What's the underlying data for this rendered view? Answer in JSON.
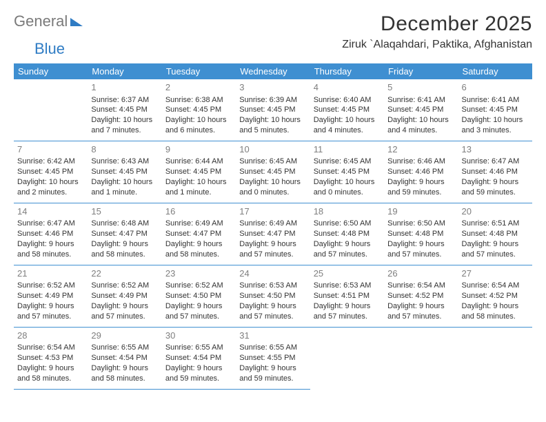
{
  "brand": {
    "part1": "General",
    "part2": "Blue"
  },
  "title": "December 2025",
  "location": "Ziruk `Alaqahdari, Paktika, Afghanistan",
  "colors": {
    "header_bg": "#3f8fd1",
    "header_text": "#ffffff",
    "rule": "#3f8fd1",
    "daynum": "#7e7e7e",
    "body_text": "#333333",
    "brand_gray": "#7a7a7a",
    "brand_blue": "#2f7cc4",
    "page_bg": "#ffffff"
  },
  "typography": {
    "title_fontsize": 30,
    "location_fontsize": 16,
    "dayheader_fontsize": 13,
    "cell_fontsize": 11,
    "daynum_fontsize": 13
  },
  "day_headers": [
    "Sunday",
    "Monday",
    "Tuesday",
    "Wednesday",
    "Thursday",
    "Friday",
    "Saturday"
  ],
  "weeks": [
    [
      {
        "n": "",
        "sr": "",
        "ss": "",
        "dl": ""
      },
      {
        "n": "1",
        "sr": "Sunrise: 6:37 AM",
        "ss": "Sunset: 4:45 PM",
        "dl": "Daylight: 10 hours and 7 minutes."
      },
      {
        "n": "2",
        "sr": "Sunrise: 6:38 AM",
        "ss": "Sunset: 4:45 PM",
        "dl": "Daylight: 10 hours and 6 minutes."
      },
      {
        "n": "3",
        "sr": "Sunrise: 6:39 AM",
        "ss": "Sunset: 4:45 PM",
        "dl": "Daylight: 10 hours and 5 minutes."
      },
      {
        "n": "4",
        "sr": "Sunrise: 6:40 AM",
        "ss": "Sunset: 4:45 PM",
        "dl": "Daylight: 10 hours and 4 minutes."
      },
      {
        "n": "5",
        "sr": "Sunrise: 6:41 AM",
        "ss": "Sunset: 4:45 PM",
        "dl": "Daylight: 10 hours and 4 minutes."
      },
      {
        "n": "6",
        "sr": "Sunrise: 6:41 AM",
        "ss": "Sunset: 4:45 PM",
        "dl": "Daylight: 10 hours and 3 minutes."
      }
    ],
    [
      {
        "n": "7",
        "sr": "Sunrise: 6:42 AM",
        "ss": "Sunset: 4:45 PM",
        "dl": "Daylight: 10 hours and 2 minutes."
      },
      {
        "n": "8",
        "sr": "Sunrise: 6:43 AM",
        "ss": "Sunset: 4:45 PM",
        "dl": "Daylight: 10 hours and 1 minute."
      },
      {
        "n": "9",
        "sr": "Sunrise: 6:44 AM",
        "ss": "Sunset: 4:45 PM",
        "dl": "Daylight: 10 hours and 1 minute."
      },
      {
        "n": "10",
        "sr": "Sunrise: 6:45 AM",
        "ss": "Sunset: 4:45 PM",
        "dl": "Daylight: 10 hours and 0 minutes."
      },
      {
        "n": "11",
        "sr": "Sunrise: 6:45 AM",
        "ss": "Sunset: 4:45 PM",
        "dl": "Daylight: 10 hours and 0 minutes."
      },
      {
        "n": "12",
        "sr": "Sunrise: 6:46 AM",
        "ss": "Sunset: 4:46 PM",
        "dl": "Daylight: 9 hours and 59 minutes."
      },
      {
        "n": "13",
        "sr": "Sunrise: 6:47 AM",
        "ss": "Sunset: 4:46 PM",
        "dl": "Daylight: 9 hours and 59 minutes."
      }
    ],
    [
      {
        "n": "14",
        "sr": "Sunrise: 6:47 AM",
        "ss": "Sunset: 4:46 PM",
        "dl": "Daylight: 9 hours and 58 minutes."
      },
      {
        "n": "15",
        "sr": "Sunrise: 6:48 AM",
        "ss": "Sunset: 4:47 PM",
        "dl": "Daylight: 9 hours and 58 minutes."
      },
      {
        "n": "16",
        "sr": "Sunrise: 6:49 AM",
        "ss": "Sunset: 4:47 PM",
        "dl": "Daylight: 9 hours and 58 minutes."
      },
      {
        "n": "17",
        "sr": "Sunrise: 6:49 AM",
        "ss": "Sunset: 4:47 PM",
        "dl": "Daylight: 9 hours and 57 minutes."
      },
      {
        "n": "18",
        "sr": "Sunrise: 6:50 AM",
        "ss": "Sunset: 4:48 PM",
        "dl": "Daylight: 9 hours and 57 minutes."
      },
      {
        "n": "19",
        "sr": "Sunrise: 6:50 AM",
        "ss": "Sunset: 4:48 PM",
        "dl": "Daylight: 9 hours and 57 minutes."
      },
      {
        "n": "20",
        "sr": "Sunrise: 6:51 AM",
        "ss": "Sunset: 4:48 PM",
        "dl": "Daylight: 9 hours and 57 minutes."
      }
    ],
    [
      {
        "n": "21",
        "sr": "Sunrise: 6:52 AM",
        "ss": "Sunset: 4:49 PM",
        "dl": "Daylight: 9 hours and 57 minutes."
      },
      {
        "n": "22",
        "sr": "Sunrise: 6:52 AM",
        "ss": "Sunset: 4:49 PM",
        "dl": "Daylight: 9 hours and 57 minutes."
      },
      {
        "n": "23",
        "sr": "Sunrise: 6:52 AM",
        "ss": "Sunset: 4:50 PM",
        "dl": "Daylight: 9 hours and 57 minutes."
      },
      {
        "n": "24",
        "sr": "Sunrise: 6:53 AM",
        "ss": "Sunset: 4:50 PM",
        "dl": "Daylight: 9 hours and 57 minutes."
      },
      {
        "n": "25",
        "sr": "Sunrise: 6:53 AM",
        "ss": "Sunset: 4:51 PM",
        "dl": "Daylight: 9 hours and 57 minutes."
      },
      {
        "n": "26",
        "sr": "Sunrise: 6:54 AM",
        "ss": "Sunset: 4:52 PM",
        "dl": "Daylight: 9 hours and 57 minutes."
      },
      {
        "n": "27",
        "sr": "Sunrise: 6:54 AM",
        "ss": "Sunset: 4:52 PM",
        "dl": "Daylight: 9 hours and 58 minutes."
      }
    ],
    [
      {
        "n": "28",
        "sr": "Sunrise: 6:54 AM",
        "ss": "Sunset: 4:53 PM",
        "dl": "Daylight: 9 hours and 58 minutes."
      },
      {
        "n": "29",
        "sr": "Sunrise: 6:55 AM",
        "ss": "Sunset: 4:54 PM",
        "dl": "Daylight: 9 hours and 58 minutes."
      },
      {
        "n": "30",
        "sr": "Sunrise: 6:55 AM",
        "ss": "Sunset: 4:54 PM",
        "dl": "Daylight: 9 hours and 59 minutes."
      },
      {
        "n": "31",
        "sr": "Sunrise: 6:55 AM",
        "ss": "Sunset: 4:55 PM",
        "dl": "Daylight: 9 hours and 59 minutes."
      },
      {
        "n": "",
        "sr": "",
        "ss": "",
        "dl": ""
      },
      {
        "n": "",
        "sr": "",
        "ss": "",
        "dl": ""
      },
      {
        "n": "",
        "sr": "",
        "ss": "",
        "dl": ""
      }
    ]
  ]
}
